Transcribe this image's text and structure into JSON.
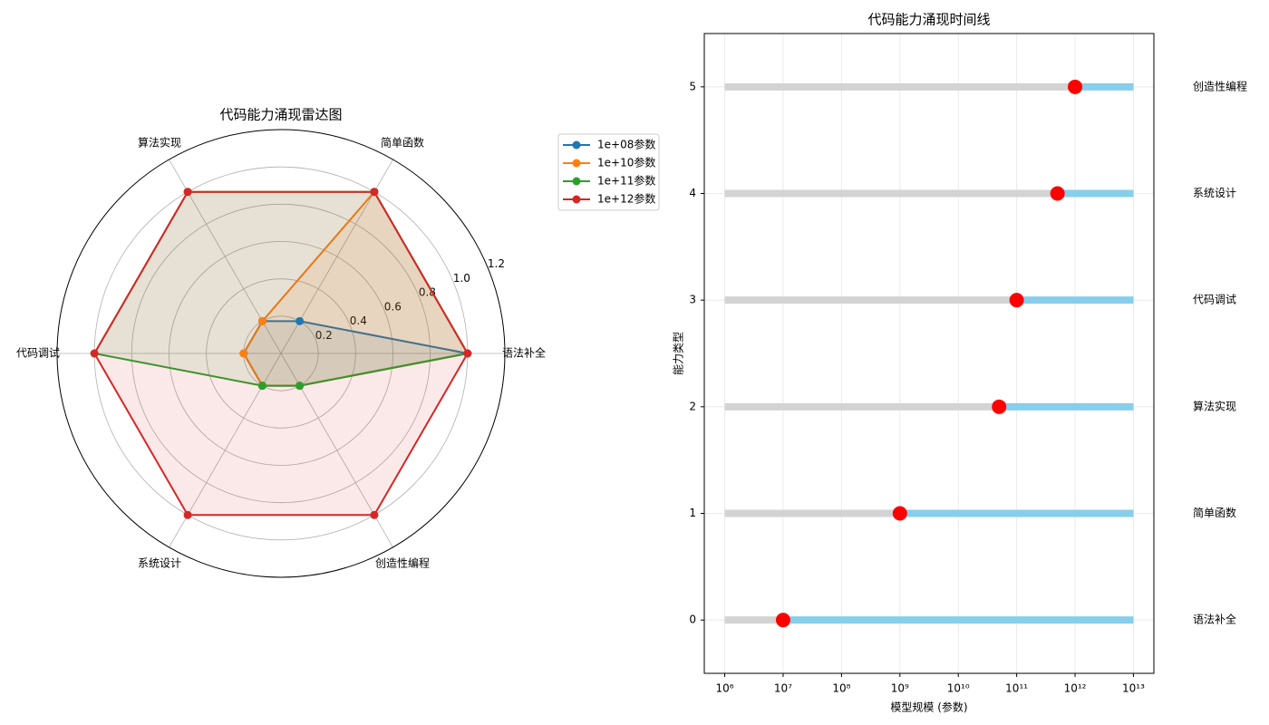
{
  "chart_data": [
    {
      "type": "radar",
      "title": "代码能力涌现雷达图",
      "categories": [
        "语法补全",
        "简单函数",
        "算法实现",
        "代码调试",
        "系统设计",
        "创造性编程"
      ],
      "series": [
        {
          "name": "1e+08参数",
          "color": "#1f77b4",
          "values": [
            1,
            0.2,
            0.2,
            0.2,
            0.2,
            0.2
          ]
        },
        {
          "name": "1e+10参数",
          "color": "#ff7f0e",
          "values": [
            1,
            1,
            0.2,
            0.2,
            0.2,
            0.2
          ]
        },
        {
          "name": "1e+11参数",
          "color": "#2ca02c",
          "values": [
            1,
            1,
            1,
            1,
            0.2,
            0.2
          ]
        },
        {
          "name": "1e+12参数",
          "color": "#d62728",
          "values": [
            1,
            1,
            1,
            1,
            1,
            1
          ]
        }
      ],
      "rlim": [
        0,
        1.2
      ],
      "rticks": [
        0.2,
        0.4,
        0.6,
        0.8,
        {
          "value": 1,
          "label": "1.0"
        },
        1.2
      ],
      "grid": true,
      "legend": "upper right"
    },
    {
      "type": "timeline",
      "title": "代码能力涌现时间线",
      "xlabel": "模型规模 (参数)",
      "ylabel": "能力类型",
      "categories": [
        "语法补全",
        "简单函数",
        "算法实现",
        "代码调试",
        "系统设计",
        "创造性编程"
      ],
      "values": [
        10000000,
        1000000000,
        50000000000,
        100000000000,
        500000000000,
        1000000000000
      ],
      "range": [
        1000000,
        10000000000000
      ],
      "xscale": "log",
      "xlim": [
        446684,
        22387211385683
      ],
      "xticks": [
        {
          "value": 1000000,
          "label": "10⁶"
        },
        {
          "value": 10000000,
          "label": "10⁷"
        },
        {
          "value": 100000000,
          "label": "10⁸"
        },
        {
          "value": 1000000000,
          "label": "10⁹"
        },
        {
          "value": 10000000000,
          "label": "10¹⁰"
        },
        {
          "value": 100000000000,
          "label": "10¹¹"
        },
        {
          "value": 1000000000000,
          "label": "10¹²"
        },
        {
          "value": 10000000000000,
          "label": "10¹³"
        }
      ],
      "ylim": [
        -0.5,
        5.5
      ],
      "yticks": [
        0,
        1,
        2,
        3,
        4,
        5
      ],
      "grid": true,
      "colors": {
        "before": "#d3d3d3",
        "after": "#87ceeb",
        "marker": "#ff0000"
      }
    }
  ]
}
